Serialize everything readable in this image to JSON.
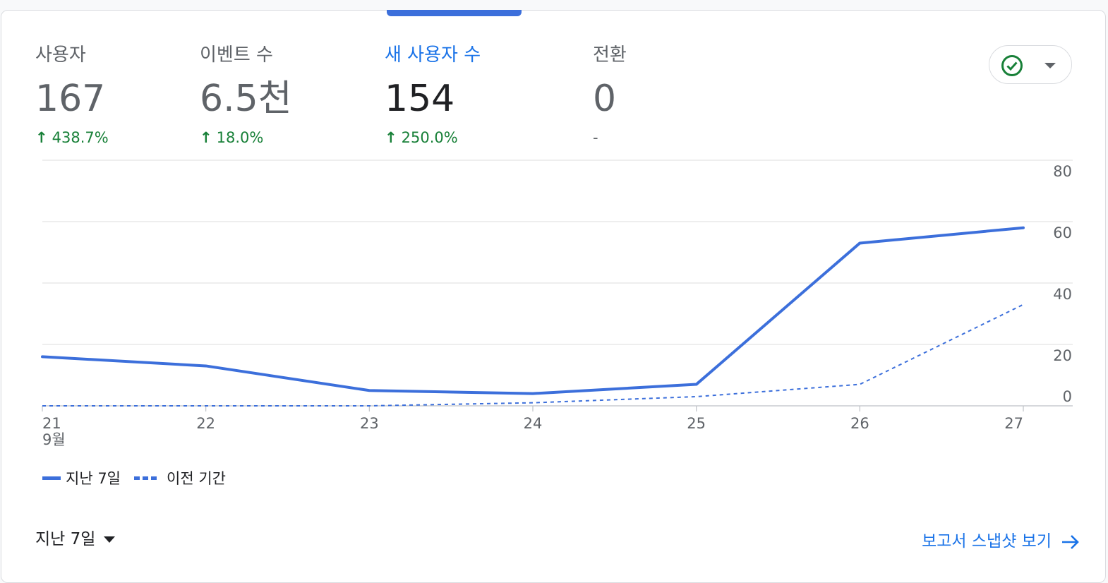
{
  "metrics": [
    {
      "label": "사용자",
      "value": "167",
      "change": "438.7%"
    },
    {
      "label": "이벤트 수",
      "value": "6.5천",
      "change": "18.0%"
    },
    {
      "label": "새 사용자 수",
      "value": "154",
      "change": "250.0%"
    },
    {
      "label": "전환",
      "value": "0",
      "change": "-"
    }
  ],
  "status_icon": "check-circle-icon",
  "colors": {
    "accent": "#1a73e8",
    "series": "#3c6fdb",
    "positive": "#188038"
  },
  "chart_data": {
    "type": "line",
    "x": [
      "21",
      "22",
      "23",
      "24",
      "25",
      "26",
      "27"
    ],
    "x_month_label": "9월",
    "ylim": [
      0,
      80
    ],
    "yticks": [
      0,
      20,
      40,
      60,
      80
    ],
    "grid": true,
    "legend_position": "bottom-left",
    "y_axis_position": "right",
    "series": [
      {
        "name": "지난 7일",
        "style": "solid",
        "values": [
          16,
          13,
          5,
          4,
          7,
          53,
          58
        ]
      },
      {
        "name": "이전 기간",
        "style": "dashed",
        "values": [
          0,
          0,
          0,
          1,
          3,
          7,
          33
        ]
      }
    ]
  },
  "footer": {
    "range_label": "지난 7일",
    "report_link": "보고서 스냅샷 보기"
  }
}
